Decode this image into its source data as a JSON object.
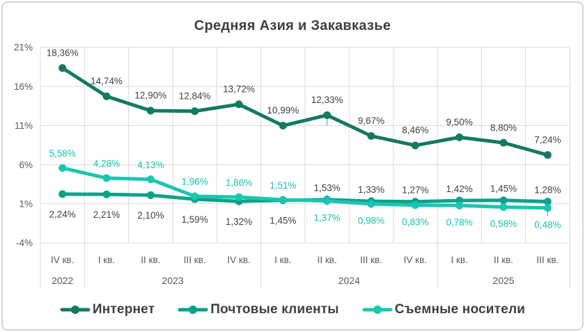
{
  "chart_data": {
    "type": "line",
    "title": "Средняя Азия и Закавказье",
    "ylim": [
      -4,
      21
    ],
    "ytick_step": 5,
    "ytick_labels": [
      "21%",
      "16%",
      "11%",
      "6%",
      "1%",
      "-4%"
    ],
    "grid": true,
    "legend_position": "bottom",
    "grid_color": "#d9d9d9",
    "axis_text_color": "#595959",
    "title_color": "#3f3f3f",
    "quarters": [
      "IV кв.",
      "I кв.",
      "II кв.",
      "III кв.",
      "IV кв.",
      "I кв.",
      "II кв.",
      "III кв.",
      "IV кв.",
      "I кв.",
      "II кв.",
      "III кв."
    ],
    "year_groups": [
      {
        "label": "2022",
        "span": 1
      },
      {
        "label": "2023",
        "span": 4
      },
      {
        "label": "2024",
        "span": 4
      },
      {
        "label": "2025",
        "span": 3
      }
    ],
    "series": [
      {
        "name": "Интернет",
        "color": "#147a60",
        "label_color": "#404040",
        "values": [
          18.36,
          14.74,
          12.9,
          12.84,
          13.72,
          10.99,
          12.33,
          9.67,
          8.46,
          9.5,
          8.8,
          7.24
        ],
        "labels": [
          "18,36%",
          "14,74%",
          "12,90%",
          "12,84%",
          "13,72%",
          "10,99%",
          "12,33%",
          "9,67%",
          "8,46%",
          "9,50%",
          "8,80%",
          "7,24%"
        ],
        "label_sides": [
          "above",
          "above",
          "above",
          "above",
          "above",
          "above",
          "above",
          "above",
          "above",
          "above",
          "above",
          "above"
        ]
      },
      {
        "name": "Почтовые клиенты",
        "color": "#0da189",
        "label_color": "#404040",
        "values": [
          2.24,
          2.21,
          2.1,
          1.59,
          1.32,
          1.45,
          1.53,
          1.33,
          1.27,
          1.42,
          1.45,
          1.28
        ],
        "labels": [
          "2,24%",
          "2,21%",
          "2,10%",
          "1,59%",
          "1,32%",
          "1,45%",
          "1,53%",
          "1,33%",
          "1,27%",
          "1,42%",
          "1,45%",
          "1,28%"
        ],
        "label_sides": [
          "below",
          "below",
          "below",
          "below",
          "below",
          "below",
          "above",
          "above",
          "above",
          "above",
          "above",
          "above"
        ]
      },
      {
        "name": "Съемные носители",
        "color": "#1bc5b1",
        "label_color": "#18c0ac",
        "values": [
          5.58,
          4.28,
          4.13,
          1.96,
          1.86,
          1.51,
          1.37,
          0.98,
          0.83,
          0.78,
          0.58,
          0.48
        ],
        "labels": [
          "5,58%",
          "4,28%",
          "4,13%",
          "1,96%",
          "1,86%",
          "1,51%",
          "1,37%",
          "0,98%",
          "0,83%",
          "0,78%",
          "0,58%",
          "0,48%"
        ],
        "label_sides": [
          "above",
          "above",
          "above",
          "above",
          "above",
          "above",
          "below",
          "below",
          "below",
          "below",
          "below",
          "below"
        ]
      }
    ]
  }
}
